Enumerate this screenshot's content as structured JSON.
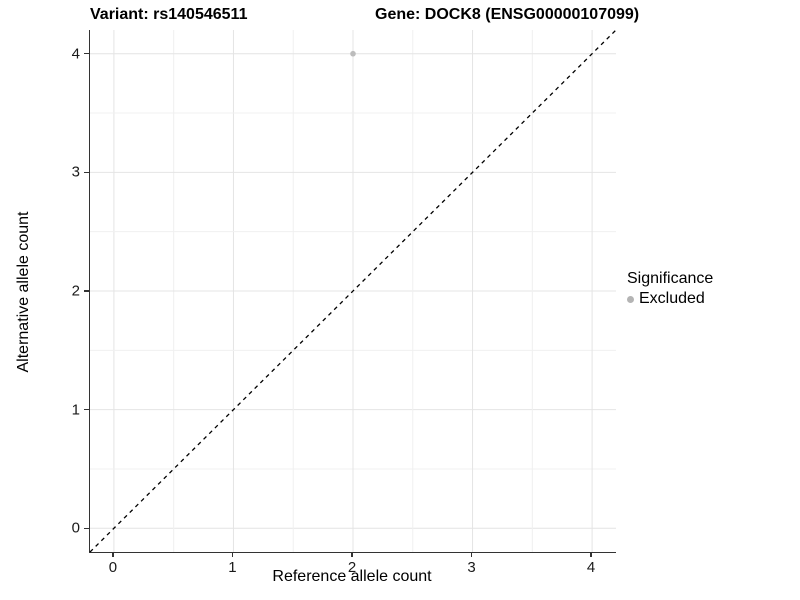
{
  "chart_data": {
    "type": "scatter",
    "title_left": "Variant: rs140546511",
    "title_right": "Gene: DOCK8 (ENSG00000107099)",
    "xlabel": "Reference allele count",
    "ylabel": "Alternative allele count",
    "xlim": [
      -0.2,
      4.2
    ],
    "ylim": [
      -0.2,
      4.2
    ],
    "x_ticks": [
      0,
      1,
      2,
      3,
      4
    ],
    "y_ticks": [
      0,
      1,
      2,
      3,
      4
    ],
    "minor_grid_step": 0.5,
    "grid": true,
    "points": [
      {
        "x": 2,
        "y": 4,
        "series": "Excluded"
      }
    ],
    "reference_line": {
      "slope": 1,
      "intercept": 0,
      "style": "dashed",
      "color": "#000000"
    },
    "legend": {
      "title": "Significance",
      "position": "right",
      "items": [
        {
          "label": "Excluded",
          "color": "#b4b4b4"
        }
      ]
    },
    "colors": {
      "grid_major": "#e4e4e4",
      "grid_minor": "#f0f0f0",
      "axis_line": "#333333",
      "point": "#bcbcbc",
      "background": "#ffffff"
    }
  }
}
